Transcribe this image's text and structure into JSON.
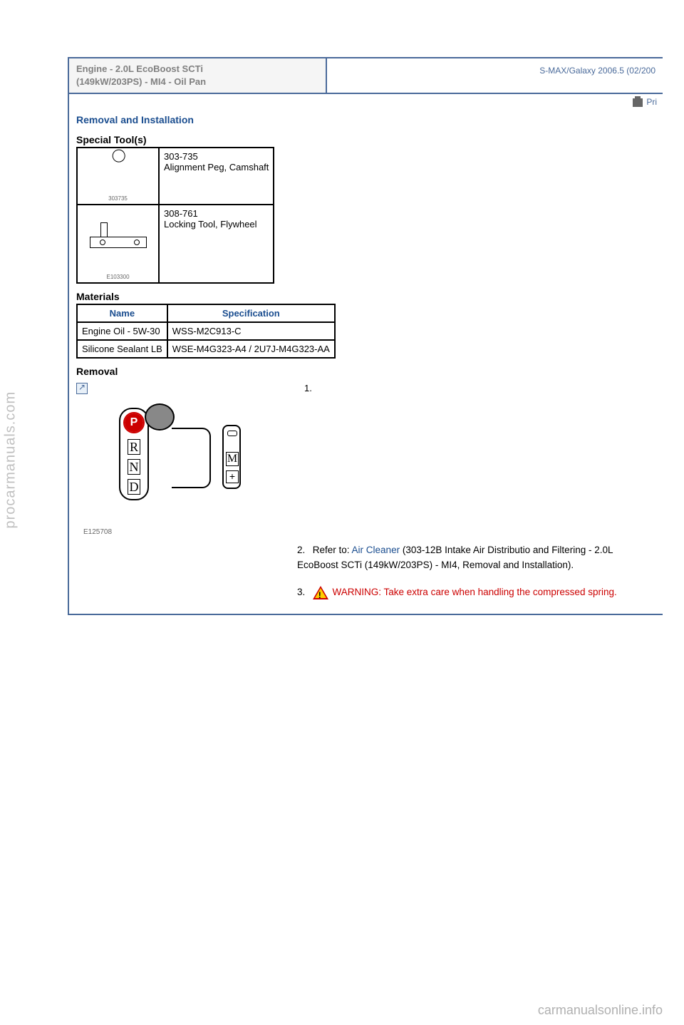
{
  "watermarks": {
    "left": "procarmanuals.com",
    "bottom": "carmanualsonline.info"
  },
  "header": {
    "title_line1": "Engine - 2.0L EcoBoost SCTi",
    "title_line2": "(149kW/203PS) - MI4 - Oil Pan",
    "vehicle": "S-MAX/Galaxy 2006.5 (02/200"
  },
  "print_label": "Pri",
  "section_title": "Removal and Installation",
  "special_tools": {
    "heading": "Special Tool(s)",
    "tools": [
      {
        "code": "303-735",
        "name": "Alignment Peg, Camshaft",
        "img_label": "303735"
      },
      {
        "code": "308-761",
        "name": "Locking Tool, Flywheel",
        "img_label": "E103300"
      }
    ]
  },
  "materials": {
    "heading": "Materials",
    "headers": {
      "name": "Name",
      "spec": "Specification"
    },
    "rows": [
      {
        "name": "Engine Oil - 5W-30",
        "spec": "WSS-M2C913-C"
      },
      {
        "name": "Silicone Sealant LB",
        "spec": "WSE-M4G323-A4 / 2U7J-M4G323-AA"
      }
    ]
  },
  "removal": {
    "heading": "Removal",
    "step1_num": "1.",
    "diagram_label": "E125708",
    "step2": {
      "num": "2.",
      "prefix": "Refer to: ",
      "link": "Air Cleaner",
      "suffix": " (303-12B Intake Air Distributio and Filtering - 2.0L EcoBoost SCTi (149kW/203PS) - MI4, Removal and Installation)."
    },
    "step3": {
      "num": "3.",
      "warning": "WARNING: Take extra care when handling the compressed spring."
    }
  },
  "colors": {
    "link_blue": "#1a4d8f",
    "border_blue": "#4a6a9a",
    "warning_red": "#c00",
    "gray_text": "#808080",
    "watermark_gray": "#c0c0c0"
  }
}
